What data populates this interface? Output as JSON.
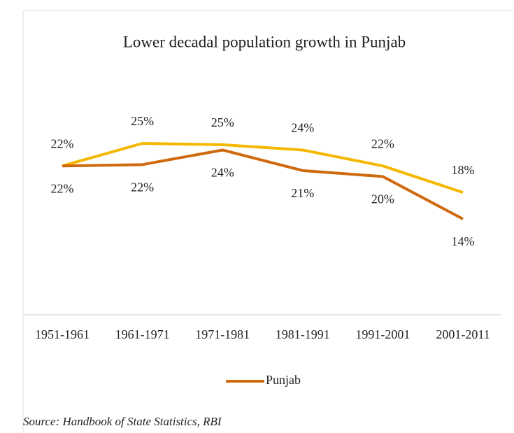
{
  "chart_data": {
    "type": "line",
    "title": "Lower decadal population growth in Punjab",
    "categories": [
      "1951-1961",
      "1961-1971",
      "1971-1981",
      "1981-1991",
      "1991-2001",
      "2001-2011"
    ],
    "series": [
      {
        "color": "#f5b800",
        "values": [
          22,
          25.4,
          25.2,
          24.4,
          22,
          18
        ],
        "value_labels": [
          "22%",
          "25%",
          "25%",
          "24%",
          "22%",
          "18%"
        ]
      },
      {
        "name": "Punjab",
        "color": "#cf6a0e",
        "values": [
          22,
          22.2,
          24.4,
          21.3,
          20.4,
          14
        ],
        "value_labels": [
          "22%",
          "22%",
          "24%",
          "21%",
          "20%",
          "14%"
        ]
      }
    ],
    "source": "Source: Handbook of State Statistics, RBI"
  }
}
